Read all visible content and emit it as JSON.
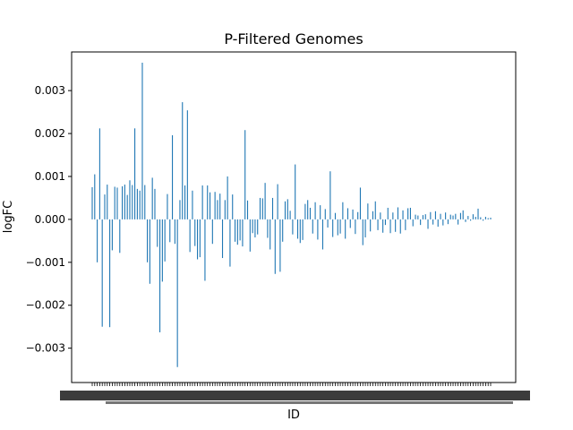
{
  "chart_data": {
    "type": "bar",
    "title": "P-Filtered Genomes",
    "xlabel": "ID",
    "ylabel": "logFC",
    "ylim": [
      -0.0038,
      0.0039
    ],
    "yticks": [
      -0.003,
      -0.002,
      -0.001,
      0.0,
      0.001,
      0.002,
      0.003
    ],
    "ytick_labels": [
      "−0.003",
      "−0.002",
      "−0.001",
      "0.000",
      "0.001",
      "0.002",
      "0.003"
    ],
    "grid": false,
    "legend": "none",
    "bar_color": "#1f77b4",
    "xtick_labels_note": "category tick labels are overlapping and illegible",
    "values": [
      0.00075,
      0.00105,
      -0.001,
      0.00212,
      -0.0025,
      0.00058,
      0.00081,
      -0.00251,
      -0.00072,
      0.00076,
      0.00074,
      -0.00078,
      0.00077,
      0.00081,
      0.00057,
      0.00091,
      0.0008,
      0.00212,
      0.00071,
      0.00067,
      0.00365,
      0.0008,
      -0.001,
      -0.0015,
      0.00097,
      0.00071,
      -0.00064,
      -0.00263,
      -0.00145,
      -0.00098,
      0.00059,
      -0.00053,
      0.00196,
      -0.00057,
      -0.00344,
      0.00045,
      0.00273,
      0.00079,
      0.00254,
      -0.00076,
      0.00067,
      -0.00062,
      -0.00093,
      -0.00088,
      0.00079,
      -0.00143,
      0.00079,
      0.00063,
      -0.00057,
      0.00064,
      0.00045,
      0.0006,
      -0.0009,
      0.00045,
      0.001,
      -0.0011,
      0.00058,
      -0.00052,
      -0.00059,
      -0.00049,
      -0.00063,
      0.00208,
      0.00044,
      -0.00075,
      -0.00032,
      -0.00042,
      -0.00035,
      0.0005,
      0.00049,
      0.00085,
      -0.00043,
      -0.0007,
      0.0005,
      -0.00127,
      0.00082,
      -0.00122,
      -0.00052,
      0.00042,
      0.00047,
      0.0002,
      -0.00035,
      0.00128,
      -0.00045,
      -0.00055,
      -0.00048,
      0.00036,
      0.00045,
      0.00027,
      -0.00033,
      0.0004,
      -0.00047,
      0.00033,
      -0.0007,
      0.00024,
      -0.00019,
      0.00112,
      -0.00041,
      0.00015,
      -0.00037,
      -0.00033,
      0.0004,
      -0.00045,
      0.00026,
      -0.0002,
      0.00023,
      -0.00034,
      0.00017,
      0.00074,
      -0.0006,
      -0.00042,
      0.00037,
      -0.00028,
      0.00019,
      0.00042,
      -0.00025,
      0.00016,
      -0.00031,
      -0.00013,
      0.00027,
      -0.00032,
      0.00016,
      -0.00029,
      0.00028,
      -0.00033,
      0.00021,
      -0.00025,
      0.00026,
      0.00027,
      -0.00016,
      0.00011,
      9e-05,
      -0.00013,
      0.0001,
      0.00012,
      -0.00022,
      0.00017,
      -0.00012,
      0.00019,
      -0.00017,
      0.00013,
      -0.00014,
      0.00016,
      -0.00011,
      0.00011,
      9e-05,
      0.00013,
      -0.00012,
      0.00015,
      0.00021,
      -6e-05,
      8e-05,
      -3e-05,
      0.00012,
      6e-05,
      0.00025,
      5e-05,
      -3e-05,
      6e-05,
      3e-05,
      4e-05
    ]
  }
}
